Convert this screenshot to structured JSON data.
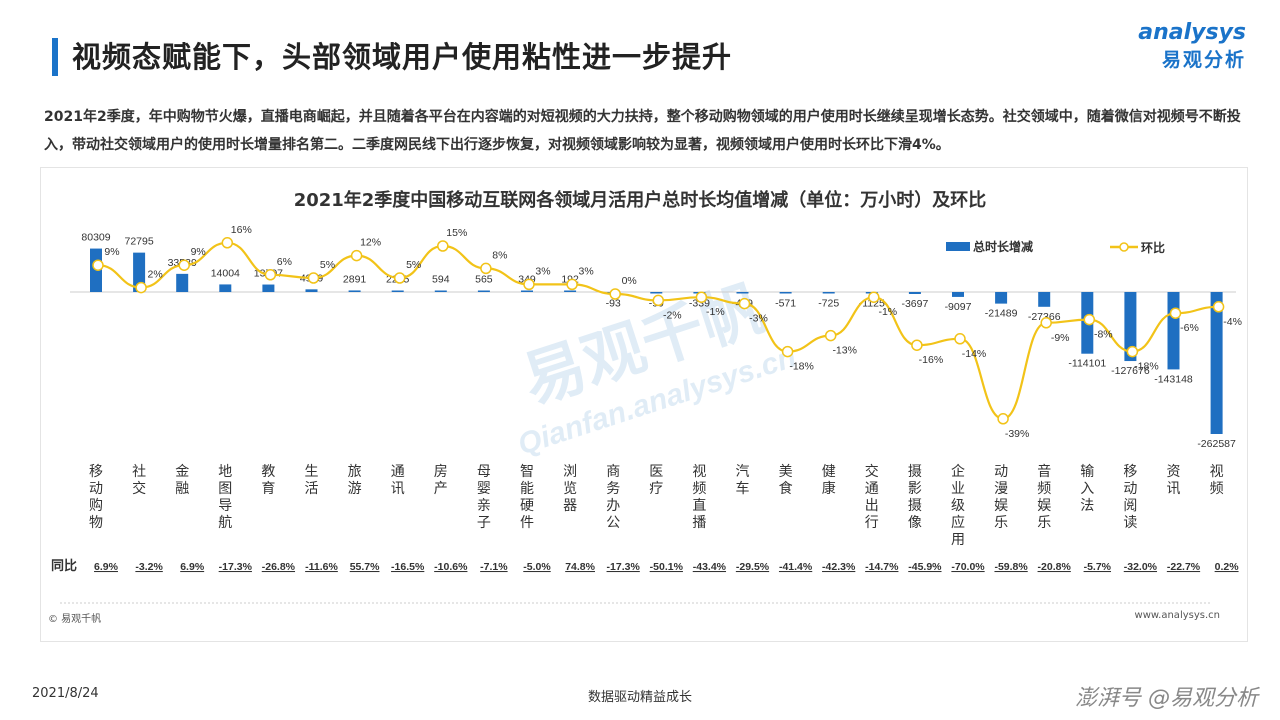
{
  "header": {
    "title": "视频态赋能下，头部领域用户使用粘性进一步提升",
    "logo_en": "analysys",
    "logo_cn": "易观分析"
  },
  "description": "2021年2季度，年中购物节火爆，直播电商崛起，并且随着各平台在内容端的对短视频的大力扶持，整个移动购物领域的用户使用时长继续呈现增长态势。社交领域中，随着微信对视频号不断投入，带动社交领域用户的使用时长增量排名第二。二季度网民线下出行逐步恢复，对视频领域影响较为显著，视频领域用户使用时长环比下滑4%。",
  "watermark": {
    "cn": "易观千帆",
    "en": "Qianfan.analysys.cn"
  },
  "chart_data": {
    "type": "bar",
    "title": "2021年2季度中国移动互联网各领域月活用户总时长均值增减（单位：万小时）及环比",
    "legend_position": "top-right",
    "yoy_row_label": "同比",
    "categories": [
      "移动购物",
      "社交",
      "金融",
      "地图导航",
      "教育",
      "生活",
      "旅游",
      "通讯",
      "房产",
      "母婴亲子",
      "智能硬件",
      "浏览器",
      "商务办公",
      "医疗",
      "视频直播",
      "汽车",
      "美食",
      "健康",
      "交通出行",
      "摄影摄像",
      "企业级应用",
      "动漫娱乐",
      "音频娱乐",
      "输入法",
      "移动阅读",
      "资讯",
      "视频"
    ],
    "series": [
      {
        "name": "总时长增减",
        "kind": "bar",
        "color": "#1f6fc1",
        "values": [
          80309,
          72795,
          33539,
          14004,
          13797,
          4919,
          2891,
          2295,
          594,
          565,
          349,
          192,
          -93,
          -99,
          -339,
          -439,
          -571,
          -725,
          -1125,
          -3697,
          -9097,
          -21489,
          -27366,
          -114101,
          -127676,
          -143148,
          -262587
        ]
      },
      {
        "name": "环比",
        "kind": "line",
        "color": "#f2c318",
        "values": [
          "9%",
          "2%",
          "9%",
          "16%",
          "6%",
          "5%",
          "12%",
          "5%",
          "15%",
          "8%",
          "3%",
          "3%",
          "0%",
          "-2%",
          "-1%",
          "-3%",
          "-18%",
          "-13%",
          "-1%",
          "-16%",
          "-14%",
          "-39%",
          "-9%",
          "-8%",
          "-18%",
          "-6%",
          "-4%"
        ]
      }
    ],
    "yoy": [
      "6.9%",
      "-3.2%",
      "6.9%",
      "-17.3%",
      "-26.8%",
      "-11.6%",
      "55.7%",
      "-16.5%",
      "-10.6%",
      "-7.1%",
      "-5.0%",
      "74.8%",
      "-17.3%",
      "-50.1%",
      "-43.4%",
      "-29.5%",
      "-41.4%",
      "-42.3%",
      "-14.7%",
      "-45.9%",
      "-70.0%",
      "-59.8%",
      "-20.8%",
      "-5.7%",
      "-32.0%",
      "-22.7%",
      "0.2%"
    ]
  },
  "source_left": "© 易观千帆",
  "source_right": "www.analysys.cn",
  "footer": {
    "date": "2021/8/24",
    "slogan": "数据驱动精益成长",
    "brand": "澎湃号 @易观分析"
  }
}
